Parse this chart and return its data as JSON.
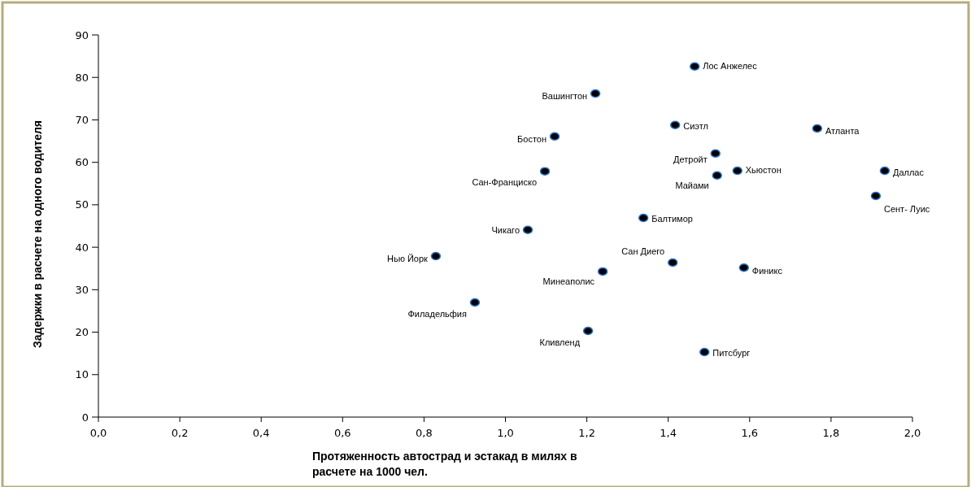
{
  "chart_data": {
    "type": "scatter",
    "xlabel": "Протяженность автострад и эстакад в милях в расчете на 1000 чел.",
    "ylabel": "Задержки в расчете на одного водителя",
    "x": [
      1.465,
      1.221,
      1.417,
      1.766,
      1.121,
      1.516,
      1.57,
      1.52,
      1.097,
      1.932,
      1.91,
      1.339,
      1.055,
      0.829,
      1.411,
      1.239,
      1.586,
      0.925,
      1.203,
      1.489
    ],
    "values": [
      82.6,
      76.2,
      68.8,
      68.0,
      66.1,
      62.1,
      58.0,
      56.9,
      57.9,
      58.0,
      52.1,
      46.9,
      44.1,
      37.9,
      36.4,
      34.3,
      35.2,
      27.0,
      20.3,
      15.3
    ],
    "color": "#000000",
    "marker": "circle",
    "xlim": [
      0,
      2
    ],
    "ylim": [
      0,
      90
    ],
    "xticks": [
      {
        "value": 0,
        "label": "0,0"
      },
      {
        "value": 0.2,
        "label": "0,2"
      },
      {
        "value": 0.4,
        "label": "0,4"
      },
      {
        "value": 0.6,
        "label": "0,6"
      },
      {
        "value": 0.8,
        "label": "0,8"
      },
      {
        "value": 1,
        "label": "1,0"
      },
      {
        "value": 1.2,
        "label": "1,2"
      },
      {
        "value": 1.4,
        "label": "1,4"
      },
      {
        "value": 1.6,
        "label": "1,6"
      },
      {
        "value": 1.8,
        "label": "1,8"
      },
      {
        "value": 2,
        "label": "2,0"
      }
    ],
    "yticks": [
      0,
      10,
      20,
      30,
      40,
      50,
      60,
      70,
      80,
      90
    ],
    "grid": false,
    "legend": false,
    "annotations": [
      {
        "text": "Лос Анжелес",
        "x": 1.465,
        "y": 82.6
      },
      {
        "text": "Вашингтон",
        "x": 1.221,
        "y": 76.2
      },
      {
        "text": "Сиэтл",
        "x": 1.417,
        "y": 68.8
      },
      {
        "text": "Атланта",
        "x": 1.766,
        "y": 68.0
      },
      {
        "text": "Бостон",
        "x": 1.121,
        "y": 66.1
      },
      {
        "text": "Детройт",
        "x": 1.516,
        "y": 62.1
      },
      {
        "text": "Хьюстон",
        "x": 1.57,
        "y": 58.0
      },
      {
        "text": "Майами",
        "x": 1.52,
        "y": 56.9
      },
      {
        "text": "Сан-Франциско",
        "x": 1.097,
        "y": 57.9
      },
      {
        "text": "Даллас",
        "x": 1.932,
        "y": 58.0
      },
      {
        "text": "Сент- Луис",
        "x": 1.91,
        "y": 52.1
      },
      {
        "text": "Балтимор",
        "x": 1.339,
        "y": 46.9
      },
      {
        "text": "Чикаго",
        "x": 1.055,
        "y": 44.1
      },
      {
        "text": "Нью Йорк",
        "x": 0.829,
        "y": 37.9
      },
      {
        "text": "Сан Диего",
        "x": 1.411,
        "y": 36.4
      },
      {
        "text": "Минеаполис",
        "x": 1.239,
        "y": 34.3
      },
      {
        "text": "Финикс",
        "x": 1.586,
        "y": 35.2
      },
      {
        "text": "Филадельфия",
        "x": 0.925,
        "y": 27.0
      },
      {
        "text": "Кливленд",
        "x": 1.203,
        "y": 20.3
      },
      {
        "text": "Питсбург",
        "x": 1.489,
        "y": 15.3
      }
    ]
  }
}
